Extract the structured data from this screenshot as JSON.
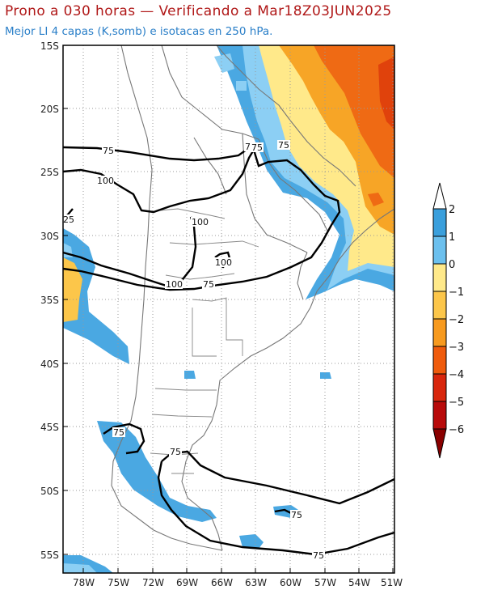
{
  "title": "Prono a 030 horas — Verificando a Mar18Z03JUN2025",
  "subtitle": "Mejor LI 4 capas (K,somb) e isotacas en 250 hPa.",
  "lat_labels": [
    "15S",
    "20S",
    "25S",
    "30S",
    "35S",
    "40S",
    "45S",
    "50S",
    "55S"
  ],
  "lon_labels": [
    "78W",
    "75W",
    "72W",
    "69W",
    "66W",
    "63W",
    "60W",
    "57W",
    "54W",
    "51W"
  ],
  "colorbar": {
    "labels": [
      "2",
      "1",
      "0",
      "−1",
      "−2",
      "−3",
      "−4",
      "−5",
      "−6"
    ],
    "colors": [
      "#3a9fdc",
      "#6cc0ee",
      "#ffe98a",
      "#fcc64a",
      "#f79a1e",
      "#ef5b0c",
      "#d8260c",
      "#b80a0a",
      "#8a0000"
    ],
    "top_color": "#ffffff",
    "bottom_color": "#8a0000"
  },
  "isotach_labels": [
    "75",
    "100",
    "25",
    "100",
    "75",
    "100",
    "100",
    "75",
    "7",
    "75",
    "75",
    "75",
    "75",
    "75"
  ],
  "colors": {
    "title": "#b01818",
    "subtitle": "#2a7fc8",
    "blue": "#4aa8e2",
    "light_blue": "#8ccff4",
    "yellow": "#ffe98a",
    "orange": "#f7a526",
    "red_orange": "#ef6a14"
  }
}
